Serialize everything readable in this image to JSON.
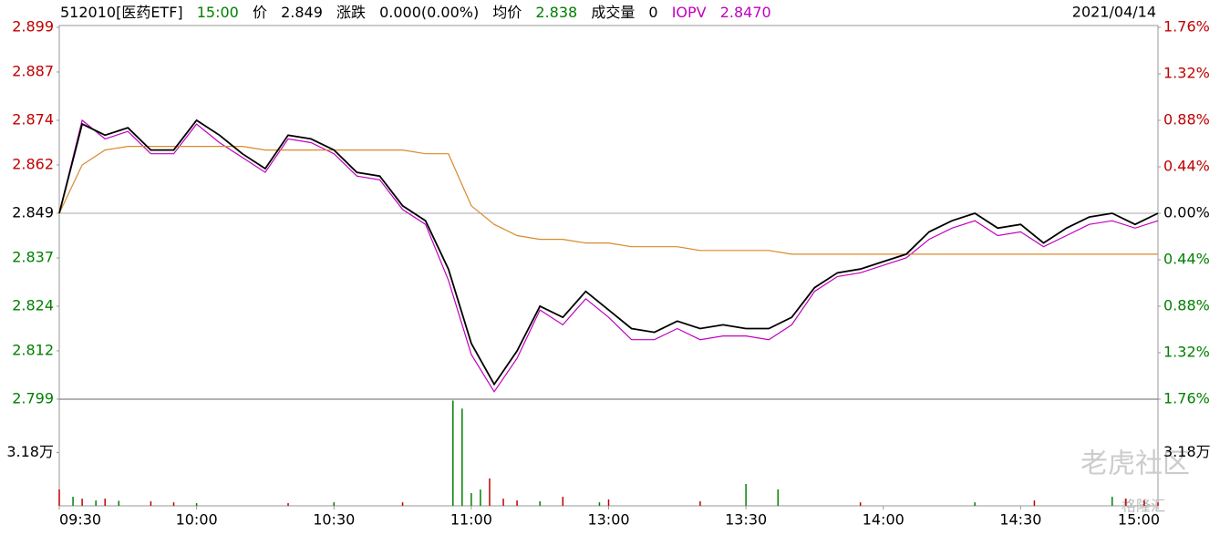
{
  "chart_data": {
    "type": "line",
    "header": {
      "symbol": "512010[医药ETF]",
      "time": "15:00",
      "price_label": "价",
      "price": "2.849",
      "change_label": "涨跌",
      "change": "0.000(0.00%)",
      "avg_label": "均价",
      "avg": "2.838",
      "volume_label": "成交量",
      "volume": "0",
      "iopv_label": "IOPV",
      "iopv": "2.8470",
      "date": "2021/04/14"
    },
    "x": [
      0,
      5,
      10,
      15,
      20,
      25,
      30,
      35,
      40,
      45,
      50,
      55,
      60,
      65,
      70,
      75,
      80,
      85,
      90,
      95,
      100,
      105,
      110,
      115,
      120,
      125,
      130,
      135,
      140,
      145,
      150,
      155,
      160,
      165,
      170,
      175,
      180,
      185,
      190,
      195,
      200,
      205,
      210,
      215,
      220,
      225,
      230,
      235,
      240
    ],
    "xlim": [
      0,
      240
    ],
    "xticks": [
      {
        "value": 0,
        "label": "09:30"
      },
      {
        "value": 30,
        "label": "10:00"
      },
      {
        "value": 60,
        "label": "10:30"
      },
      {
        "value": 90,
        "label": "11:00"
      },
      {
        "value": 120,
        "label": "13:00"
      },
      {
        "value": 150,
        "label": "13:30"
      },
      {
        "value": 180,
        "label": "14:00"
      },
      {
        "value": 210,
        "label": "14:30"
      },
      {
        "value": 240,
        "label": "15:00"
      }
    ],
    "series": [
      {
        "name": "价",
        "color": "#000000",
        "values": [
          2.849,
          2.873,
          2.87,
          2.872,
          2.866,
          2.866,
          2.874,
          2.87,
          2.865,
          2.861,
          2.87,
          2.869,
          2.866,
          2.86,
          2.859,
          2.851,
          2.847,
          2.834,
          2.814,
          2.803,
          2.812,
          2.824,
          2.821,
          2.828,
          2.823,
          2.818,
          2.817,
          2.82,
          2.818,
          2.819,
          2.818,
          2.818,
          2.821,
          2.829,
          2.833,
          2.834,
          2.836,
          2.838,
          2.844,
          2.847,
          2.849,
          2.845,
          2.846,
          2.841,
          2.845,
          2.848,
          2.849,
          2.846,
          2.849
        ]
      },
      {
        "name": "均价",
        "color": "#d98a2a",
        "values": [
          2.849,
          2.862,
          2.866,
          2.867,
          2.867,
          2.867,
          2.867,
          2.867,
          2.867,
          2.866,
          2.866,
          2.866,
          2.866,
          2.866,
          2.866,
          2.866,
          2.865,
          2.865,
          2.851,
          2.846,
          2.843,
          2.842,
          2.842,
          2.841,
          2.841,
          2.84,
          2.84,
          2.84,
          2.839,
          2.839,
          2.839,
          2.839,
          2.838,
          2.838,
          2.838,
          2.838,
          2.838,
          2.838,
          2.838,
          2.838,
          2.838,
          2.838,
          2.838,
          2.838,
          2.838,
          2.838,
          2.838,
          2.838,
          2.838
        ]
      },
      {
        "name": "IOPV",
        "color": "#c000c0",
        "values": [
          2.849,
          2.874,
          2.869,
          2.871,
          2.865,
          2.865,
          2.873,
          2.868,
          2.864,
          2.86,
          2.869,
          2.868,
          2.865,
          2.859,
          2.858,
          2.85,
          2.846,
          2.831,
          2.811,
          2.801,
          2.81,
          2.823,
          2.819,
          2.826,
          2.821,
          2.815,
          2.815,
          2.818,
          2.815,
          2.816,
          2.816,
          2.815,
          2.819,
          2.828,
          2.832,
          2.833,
          2.835,
          2.837,
          2.842,
          2.845,
          2.847,
          2.843,
          2.844,
          2.84,
          2.843,
          2.846,
          2.847,
          2.845,
          2.847
        ]
      }
    ],
    "ylim": [
      2.799,
      2.899
    ],
    "yticks": [
      2.899,
      2.887,
      2.874,
      2.862,
      2.849,
      2.837,
      2.824,
      2.812,
      2.799
    ],
    "y2lim": [
      -1.76,
      1.76
    ],
    "y2ticks": [
      {
        "value": 1.76,
        "label": "1.76%"
      },
      {
        "value": 1.32,
        "label": "1.32%"
      },
      {
        "value": 0.88,
        "label": "0.88%"
      },
      {
        "value": 0.44,
        "label": "0.44%"
      },
      {
        "value": 0,
        "label": "0.00%"
      },
      {
        "value": -0.44,
        "label": "0.44%"
      },
      {
        "value": -0.88,
        "label": "0.88%"
      },
      {
        "value": -1.32,
        "label": "1.32%"
      },
      {
        "value": -1.76,
        "label": "1.76%"
      }
    ],
    "up_color": "#c00000",
    "down_color": "#008000",
    "volume": {
      "x": [
        0,
        3,
        5,
        8,
        10,
        13,
        20,
        25,
        30,
        50,
        60,
        75,
        86,
        88,
        90,
        92,
        94,
        97,
        100,
        105,
        110,
        118,
        120,
        140,
        150,
        157,
        175,
        200,
        213,
        230,
        233,
        237,
        240
      ],
      "values": [
        9800,
        5400,
        4300,
        3200,
        4300,
        3000,
        2700,
        2100,
        1600,
        1600,
        2100,
        2100,
        62800,
        58000,
        7600,
        9700,
        16300,
        4300,
        3200,
        2700,
        5400,
        2100,
        3800,
        2700,
        13000,
        9800,
        2100,
        2100,
        3200,
        5400,
        4300,
        3200,
        2100
      ],
      "colors": [
        "#c00000",
        "#008000",
        "#c00000",
        "#008000",
        "#c00000",
        "#008000",
        "#c00000",
        "#c00000",
        "#008000",
        "#c00000",
        "#008000",
        "#c00000",
        "#008000",
        "#008000",
        "#008000",
        "#008000",
        "#c00000",
        "#c00000",
        "#c00000",
        "#008000",
        "#c00000",
        "#008000",
        "#c00000",
        "#c00000",
        "#008000",
        "#008000",
        "#c00000",
        "#008000",
        "#c00000",
        "#008000",
        "#c00000",
        "#c00000",
        "#c00000"
      ],
      "ylim": [
        0,
        63600
      ],
      "yticks": [
        {
          "value": 31800,
          "label": "3.18万"
        }
      ]
    },
    "watermarks": [
      "老虎社区",
      "格隆汇"
    ]
  }
}
